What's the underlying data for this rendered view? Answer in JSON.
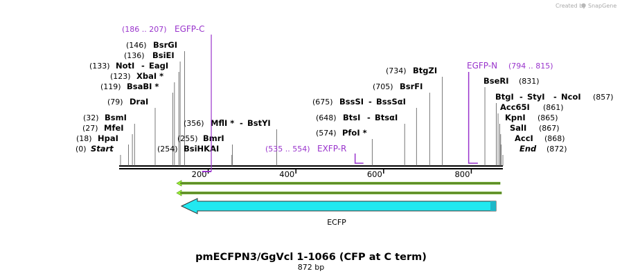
{
  "map": {
    "title": "pmECFPN3/GgVcl 1-1066 (CFP at C term)",
    "length_label": "872 bp",
    "total_bp": 872
  },
  "credit": {
    "created_by": "Created by",
    "brand": "SnapGene"
  },
  "axis": {
    "ticks": [
      200,
      400,
      600,
      800
    ]
  },
  "sites": [
    {
      "pos": "(0)",
      "name": "Start",
      "style": "bi",
      "bp": 0
    },
    {
      "pos": "(18)",
      "name": "HpaI",
      "style": "b",
      "bp": 18
    },
    {
      "pos": "(27)",
      "name": "MfeI",
      "style": "b",
      "bp": 27
    },
    {
      "pos": "(32)",
      "name": "BsmI",
      "style": "b",
      "bp": 32
    },
    {
      "pos": "(79)",
      "name": "DraI",
      "style": "b",
      "bp": 79
    },
    {
      "pos": "(119)",
      "name": "BsaBI *",
      "style": "b",
      "bp": 119
    },
    {
      "pos": "(123)",
      "name": "XbaI *",
      "style": "b",
      "bp": 123
    },
    {
      "pos": "(133)",
      "name": "NotI",
      "name2": "EagI",
      "style": "b",
      "bp": 133
    },
    {
      "pos": "(136)",
      "name": "BsiEI",
      "style": "b",
      "bp": 136
    },
    {
      "pos": "(146)",
      "name": "BsrGI",
      "style": "b",
      "bp": 146
    },
    {
      "pos": "(254)",
      "name": "BsiHKAI",
      "style": "b",
      "bp": 254
    },
    {
      "pos": "(255)",
      "name": "BmrI",
      "style": "b",
      "bp": 255
    },
    {
      "pos": "(356)",
      "name": "MflI *",
      "name2": "BstYI",
      "style": "b",
      "bp": 356
    },
    {
      "pos": "(574)",
      "name": "PfoI *",
      "style": "b",
      "bp": 574
    },
    {
      "pos": "(648)",
      "name": "BtsI",
      "name2": "BtsαI",
      "style": "b",
      "bp": 648
    },
    {
      "pos": "(675)",
      "name": "BssSI",
      "name2": "BssSαI",
      "style": "b",
      "bp": 675
    },
    {
      "pos": "(705)",
      "name": "BsrFI",
      "style": "b",
      "bp": 705
    },
    {
      "pos": "(734)",
      "name": "BtgZI",
      "style": "b",
      "bp": 734
    },
    {
      "pos": "(831)",
      "name": "BseRI",
      "style": "b",
      "bp": 831
    },
    {
      "pos": "(857)",
      "name": "BtgI",
      "name2": "StyI",
      "name3": "NcoI",
      "style": "b",
      "bp": 857
    },
    {
      "pos": "(861)",
      "name": "Acc65I",
      "style": "b",
      "bp": 861
    },
    {
      "pos": "(865)",
      "name": "KpnI",
      "style": "b",
      "bp": 865
    },
    {
      "pos": "(867)",
      "name": "SalI",
      "style": "b",
      "bp": 867
    },
    {
      "pos": "(868)",
      "name": "AccI",
      "style": "b",
      "bp": 868
    },
    {
      "pos": "(872)",
      "name": "End",
      "style": "bi",
      "bp": 872
    }
  ],
  "primers": [
    {
      "range": "(186 .. 207)",
      "name": "EGFP-C",
      "start": 186,
      "end": 207
    },
    {
      "range": "(535 .. 554)",
      "name": "EXFP-R",
      "start": 535,
      "end": 554
    },
    {
      "range": "(794 .. 815)",
      "name": "EGFP-N",
      "start": 794,
      "end": 815
    }
  ],
  "features": [
    {
      "name": "ECFP",
      "start": 130,
      "end": 852,
      "direction": "reverse",
      "color": "#22e8f0"
    }
  ],
  "colors": {
    "primer": "#9933cc",
    "orf": "#99ee33",
    "feature": "#22e8f0"
  }
}
